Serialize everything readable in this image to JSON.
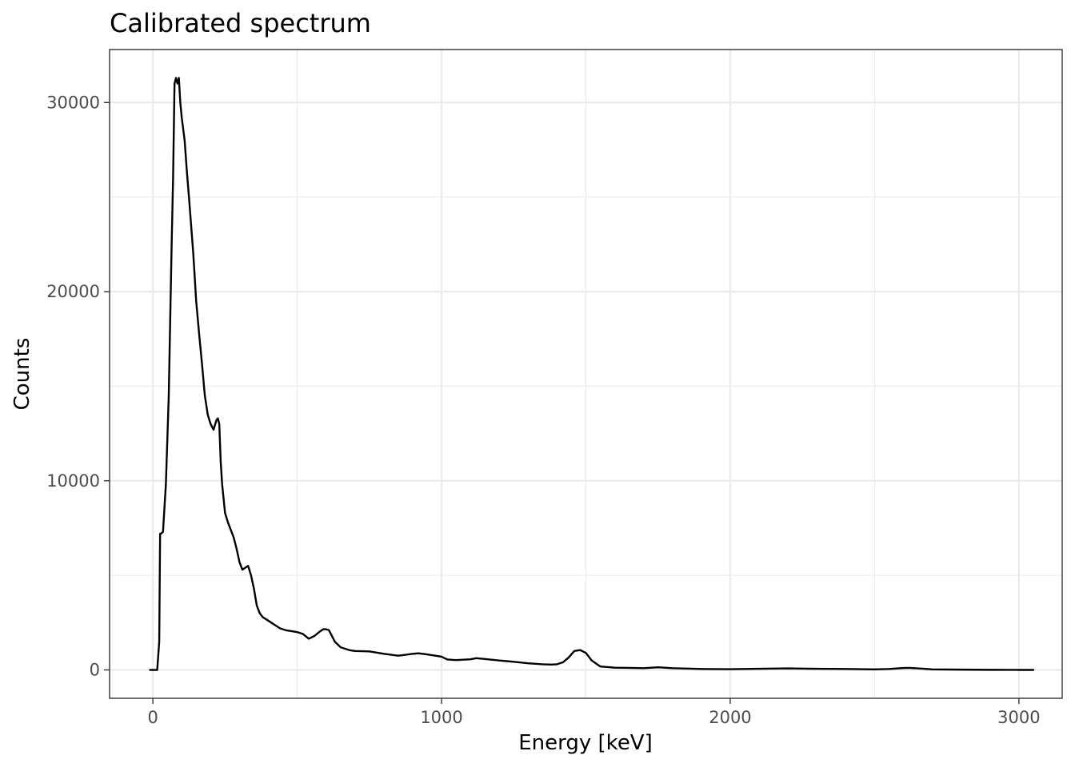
{
  "chart_data": {
    "type": "line",
    "title": "Calibrated spectrum",
    "xlabel": "Energy [keV]",
    "ylabel": "Counts",
    "xlim": [
      -150,
      3150
    ],
    "ylim": [
      -1500,
      32800
    ],
    "x_ticks": [
      {
        "value": 0,
        "label": "0"
      },
      {
        "value": 1000,
        "label": "1000"
      },
      {
        "value": 2000,
        "label": "2000"
      },
      {
        "value": 3000,
        "label": "3000"
      }
    ],
    "y_ticks": [
      {
        "value": 0,
        "label": "0"
      },
      {
        "value": 10000,
        "label": "10000"
      },
      {
        "value": 20000,
        "label": "20000"
      },
      {
        "value": 30000,
        "label": "30000"
      }
    ],
    "grid": true,
    "legend": "none",
    "colors": {
      "line": "#000000",
      "grid": "#ebebeb",
      "border": "#333333",
      "tick_text": "#4d4d4d"
    },
    "series": [
      {
        "x": [
          -10,
          15,
          22,
          25,
          28,
          35,
          45,
          55,
          60,
          65,
          70,
          75,
          80,
          85,
          90,
          95,
          100,
          110,
          118,
          125,
          130,
          140,
          150,
          160,
          170,
          180,
          190,
          200,
          210,
          220,
          225,
          230,
          235,
          240,
          250,
          260,
          270,
          280,
          290,
          300,
          310,
          320,
          330,
          340,
          350,
          360,
          370,
          380,
          390,
          400,
          420,
          440,
          460,
          480,
          500,
          520,
          540,
          560,
          580,
          590,
          600,
          610,
          620,
          630,
          650,
          680,
          700,
          750,
          800,
          850,
          900,
          920,
          950,
          1000,
          1020,
          1050,
          1100,
          1120,
          1150,
          1200,
          1250,
          1300,
          1350,
          1380,
          1400,
          1420,
          1440,
          1460,
          1480,
          1500,
          1520,
          1550,
          1600,
          1650,
          1700,
          1750,
          1800,
          1850,
          1900,
          2000,
          2100,
          2200,
          2300,
          2400,
          2500,
          2550,
          2600,
          2620,
          2650,
          2700,
          2800,
          2900,
          3000,
          3050
        ],
        "y": [
          0,
          0,
          1500,
          7200,
          7200,
          7300,
          9800,
          14500,
          18500,
          22500,
          26000,
          31000,
          31300,
          31000,
          31300,
          30000,
          29200,
          28000,
          26300,
          25000,
          24000,
          22000,
          19500,
          17800,
          16200,
          14500,
          13500,
          13000,
          12700,
          13200,
          13300,
          13000,
          11000,
          9800,
          8300,
          7800,
          7400,
          7000,
          6400,
          5700,
          5300,
          5400,
          5500,
          5000,
          4300,
          3400,
          3000,
          2800,
          2700,
          2600,
          2400,
          2200,
          2100,
          2050,
          2000,
          1900,
          1650,
          1800,
          2050,
          2150,
          2150,
          2100,
          1800,
          1500,
          1200,
          1050,
          1000,
          980,
          850,
          750,
          850,
          880,
          820,
          700,
          550,
          520,
          560,
          620,
          580,
          500,
          430,
          350,
          300,
          280,
          300,
          400,
          650,
          1000,
          1050,
          900,
          500,
          180,
          120,
          110,
          90,
          140,
          90,
          70,
          50,
          40,
          60,
          80,
          60,
          50,
          30,
          50,
          100,
          110,
          80,
          30,
          15,
          5,
          0,
          0
        ]
      }
    ]
  }
}
